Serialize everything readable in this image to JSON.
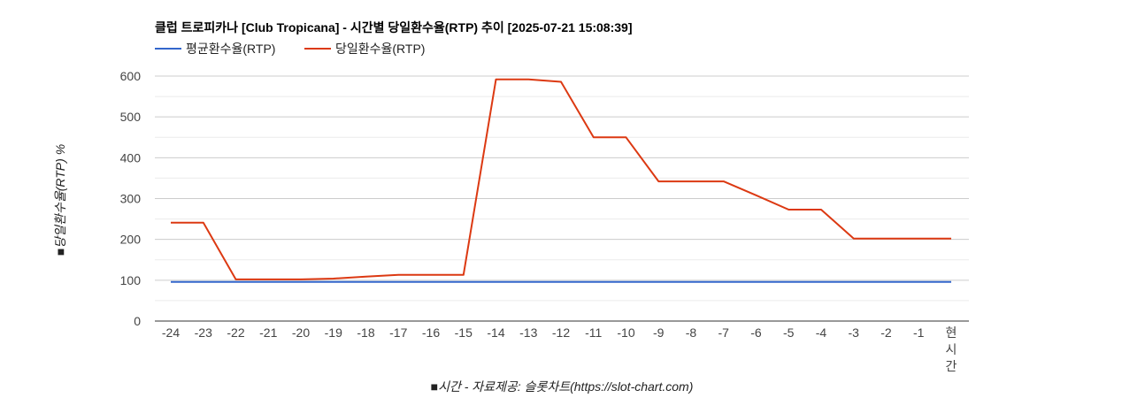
{
  "chart_data": {
    "type": "line",
    "title": "클럽 트로피카나 [Club Tropicana] - 시간별 당일환수율(RTP) 추이 [2025-07-21 15:08:39]",
    "xlabel": "■시간 - 자료제공: 슬롯차트(https://slot-chart.com)",
    "ylabel": "■당일환수율(RTP) %",
    "categories": [
      "-24",
      "-23",
      "-22",
      "-21",
      "-20",
      "-19",
      "-18",
      "-17",
      "-16",
      "-15",
      "-14",
      "-13",
      "-12",
      "-11",
      "-10",
      "-9",
      "-8",
      "-7",
      "-6",
      "-5",
      "-4",
      "-3",
      "-2",
      "-1",
      "현시간"
    ],
    "series": [
      {
        "name": "평균환수율(RTP)",
        "color": "#3366cc",
        "values": [
          96,
          96,
          96,
          96,
          96,
          96,
          96,
          96,
          96,
          96,
          96,
          96,
          96,
          96,
          96,
          96,
          96,
          96,
          96,
          96,
          96,
          96,
          96,
          96,
          96
        ]
      },
      {
        "name": "당일환수율(RTP)",
        "color": "#dc3912",
        "values": [
          241,
          241,
          102,
          102,
          102,
          104,
          109,
          113,
          113,
          113,
          592,
          592,
          586,
          450,
          450,
          342,
          342,
          342,
          308,
          273,
          273,
          202,
          202,
          202,
          202
        ]
      }
    ],
    "ylim": [
      0,
      600
    ],
    "yticks": [
      0,
      100,
      200,
      300,
      400,
      500,
      600
    ],
    "grid": true,
    "legend": "top-left"
  }
}
